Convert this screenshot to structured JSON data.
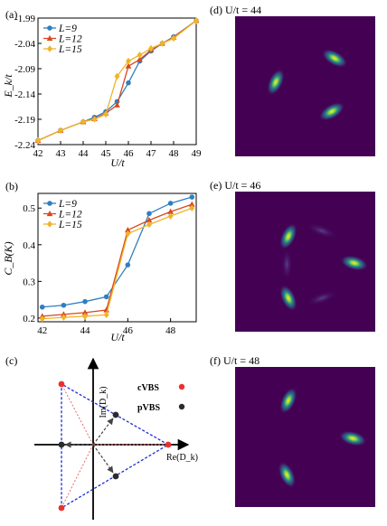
{
  "panels": {
    "a": {
      "label": "(a)",
      "ylabel": "E_k/t",
      "xlabel": "U/t"
    },
    "b": {
      "label": "(b)",
      "ylabel": "C_B(K)",
      "xlabel": "U/t"
    },
    "c": {
      "label": "(c)",
      "x_axis_label": "Re(D_k)",
      "y_axis_label": "Im(D_k)",
      "legend": [
        {
          "name": "cVBS",
          "color": "#e8312f"
        },
        {
          "name": "pVBS",
          "color": "#2b2b2b"
        }
      ]
    },
    "d": {
      "label": "(d) U/t = 44"
    },
    "e": {
      "label": "(e) U/t = 46"
    },
    "f": {
      "label": "(f) U/t = 48"
    }
  },
  "colors": {
    "L9": "#2f7fc1",
    "L12": "#d9481c",
    "L15": "#f0b429",
    "heatmap_bg": "#440154",
    "heatmap_peak": "#fde725"
  },
  "chart_data": [
    {
      "type": "line",
      "panel": "a",
      "xlabel": "U/t",
      "ylabel": "E_k/t",
      "xlim": [
        42,
        49
      ],
      "ylim": [
        -2.24,
        -1.99
      ],
      "xticks": [
        42,
        43,
        44,
        45,
        46,
        47,
        48,
        49
      ],
      "yticks": [
        -2.24,
        -2.19,
        -2.14,
        -2.09,
        -2.04,
        -1.99
      ],
      "ytick_labels": [
        "-2.24",
        "-2.19",
        "-2.14",
        "-2.09",
        "-2.04",
        "-1.99"
      ],
      "legend": "top-left",
      "series": [
        {
          "name": "L=9",
          "color": "#2f7fc1",
          "marker": "circle",
          "x": [
            42,
            43,
            44,
            44.5,
            45,
            45.5,
            46,
            46.5,
            47,
            47.5,
            48,
            49
          ],
          "y": [
            -2.232,
            -2.212,
            -2.195,
            -2.186,
            -2.175,
            -2.155,
            -2.118,
            -2.075,
            -2.055,
            -2.04,
            -2.027,
            -1.995
          ]
        },
        {
          "name": "L=12",
          "color": "#d9481c",
          "marker": "triangle",
          "x": [
            42,
            43,
            44,
            44.5,
            45,
            45.5,
            46,
            46.5,
            47,
            47.5,
            48,
            49
          ],
          "y": [
            -2.232,
            -2.212,
            -2.195,
            -2.189,
            -2.178,
            -2.162,
            -2.085,
            -2.072,
            -2.053,
            -2.04,
            -2.028,
            -1.995
          ]
        },
        {
          "name": "L=15",
          "color": "#f0b429",
          "marker": "diamond",
          "x": [
            42,
            43,
            44,
            44.5,
            45,
            45.5,
            46,
            46.5,
            47,
            47.5,
            48,
            49
          ],
          "y": [
            -2.232,
            -2.212,
            -2.195,
            -2.19,
            -2.18,
            -2.105,
            -2.075,
            -2.063,
            -2.05,
            -2.04,
            -2.03,
            -1.995
          ]
        }
      ]
    },
    {
      "type": "line",
      "panel": "b",
      "xlabel": "U/t",
      "ylabel": "C_B(K)",
      "xlim": [
        41.8,
        49.2
      ],
      "ylim": [
        0.19,
        0.54
      ],
      "xticks": [
        42,
        44,
        46,
        48
      ],
      "yticks": [
        0.2,
        0.3,
        0.4,
        0.5
      ],
      "ytick_labels": [
        "0.2",
        "0.3",
        "0.4",
        "0.5"
      ],
      "legend": "top-left",
      "series": [
        {
          "name": "L=9",
          "color": "#2f7fc1",
          "marker": "circle",
          "x": [
            42,
            43,
            44,
            45,
            46,
            47,
            48,
            49
          ],
          "y": [
            0.23,
            0.235,
            0.245,
            0.258,
            0.345,
            0.485,
            0.513,
            0.53
          ]
        },
        {
          "name": "L=12",
          "color": "#d9481c",
          "marker": "triangle",
          "x": [
            42,
            43,
            44,
            45,
            46,
            47,
            48,
            49
          ],
          "y": [
            0.205,
            0.21,
            0.215,
            0.222,
            0.44,
            0.467,
            0.49,
            0.51
          ]
        },
        {
          "name": "L=15",
          "color": "#f0b429",
          "marker": "diamond",
          "x": [
            42,
            43,
            44,
            45,
            46,
            47,
            48,
            49
          ],
          "y": [
            0.198,
            0.202,
            0.205,
            0.209,
            0.43,
            0.455,
            0.478,
            0.5
          ]
        }
      ]
    },
    {
      "type": "heatmap",
      "panel": "d",
      "title": "U/t = 44",
      "peaks": [
        {
          "x": 0.29,
          "y": 0.47,
          "angle": -65
        },
        {
          "x": 0.71,
          "y": 0.3,
          "angle": 30
        },
        {
          "x": 0.69,
          "y": 0.68,
          "angle": -30
        }
      ]
    },
    {
      "type": "heatmap",
      "panel": "e",
      "title": "U/t = 46",
      "peaks": [
        {
          "x": 0.38,
          "y": 0.32,
          "angle": -65
        },
        {
          "x": 0.85,
          "y": 0.51,
          "angle": 15
        },
        {
          "x": 0.38,
          "y": 0.76,
          "angle": 65
        }
      ]
    },
    {
      "type": "heatmap",
      "panel": "f",
      "title": "U/t = 48",
      "peaks": [
        {
          "x": 0.38,
          "y": 0.24,
          "angle": -65
        },
        {
          "x": 0.84,
          "y": 0.51,
          "angle": 15
        },
        {
          "x": 0.37,
          "y": 0.77,
          "angle": 65
        }
      ]
    }
  ]
}
